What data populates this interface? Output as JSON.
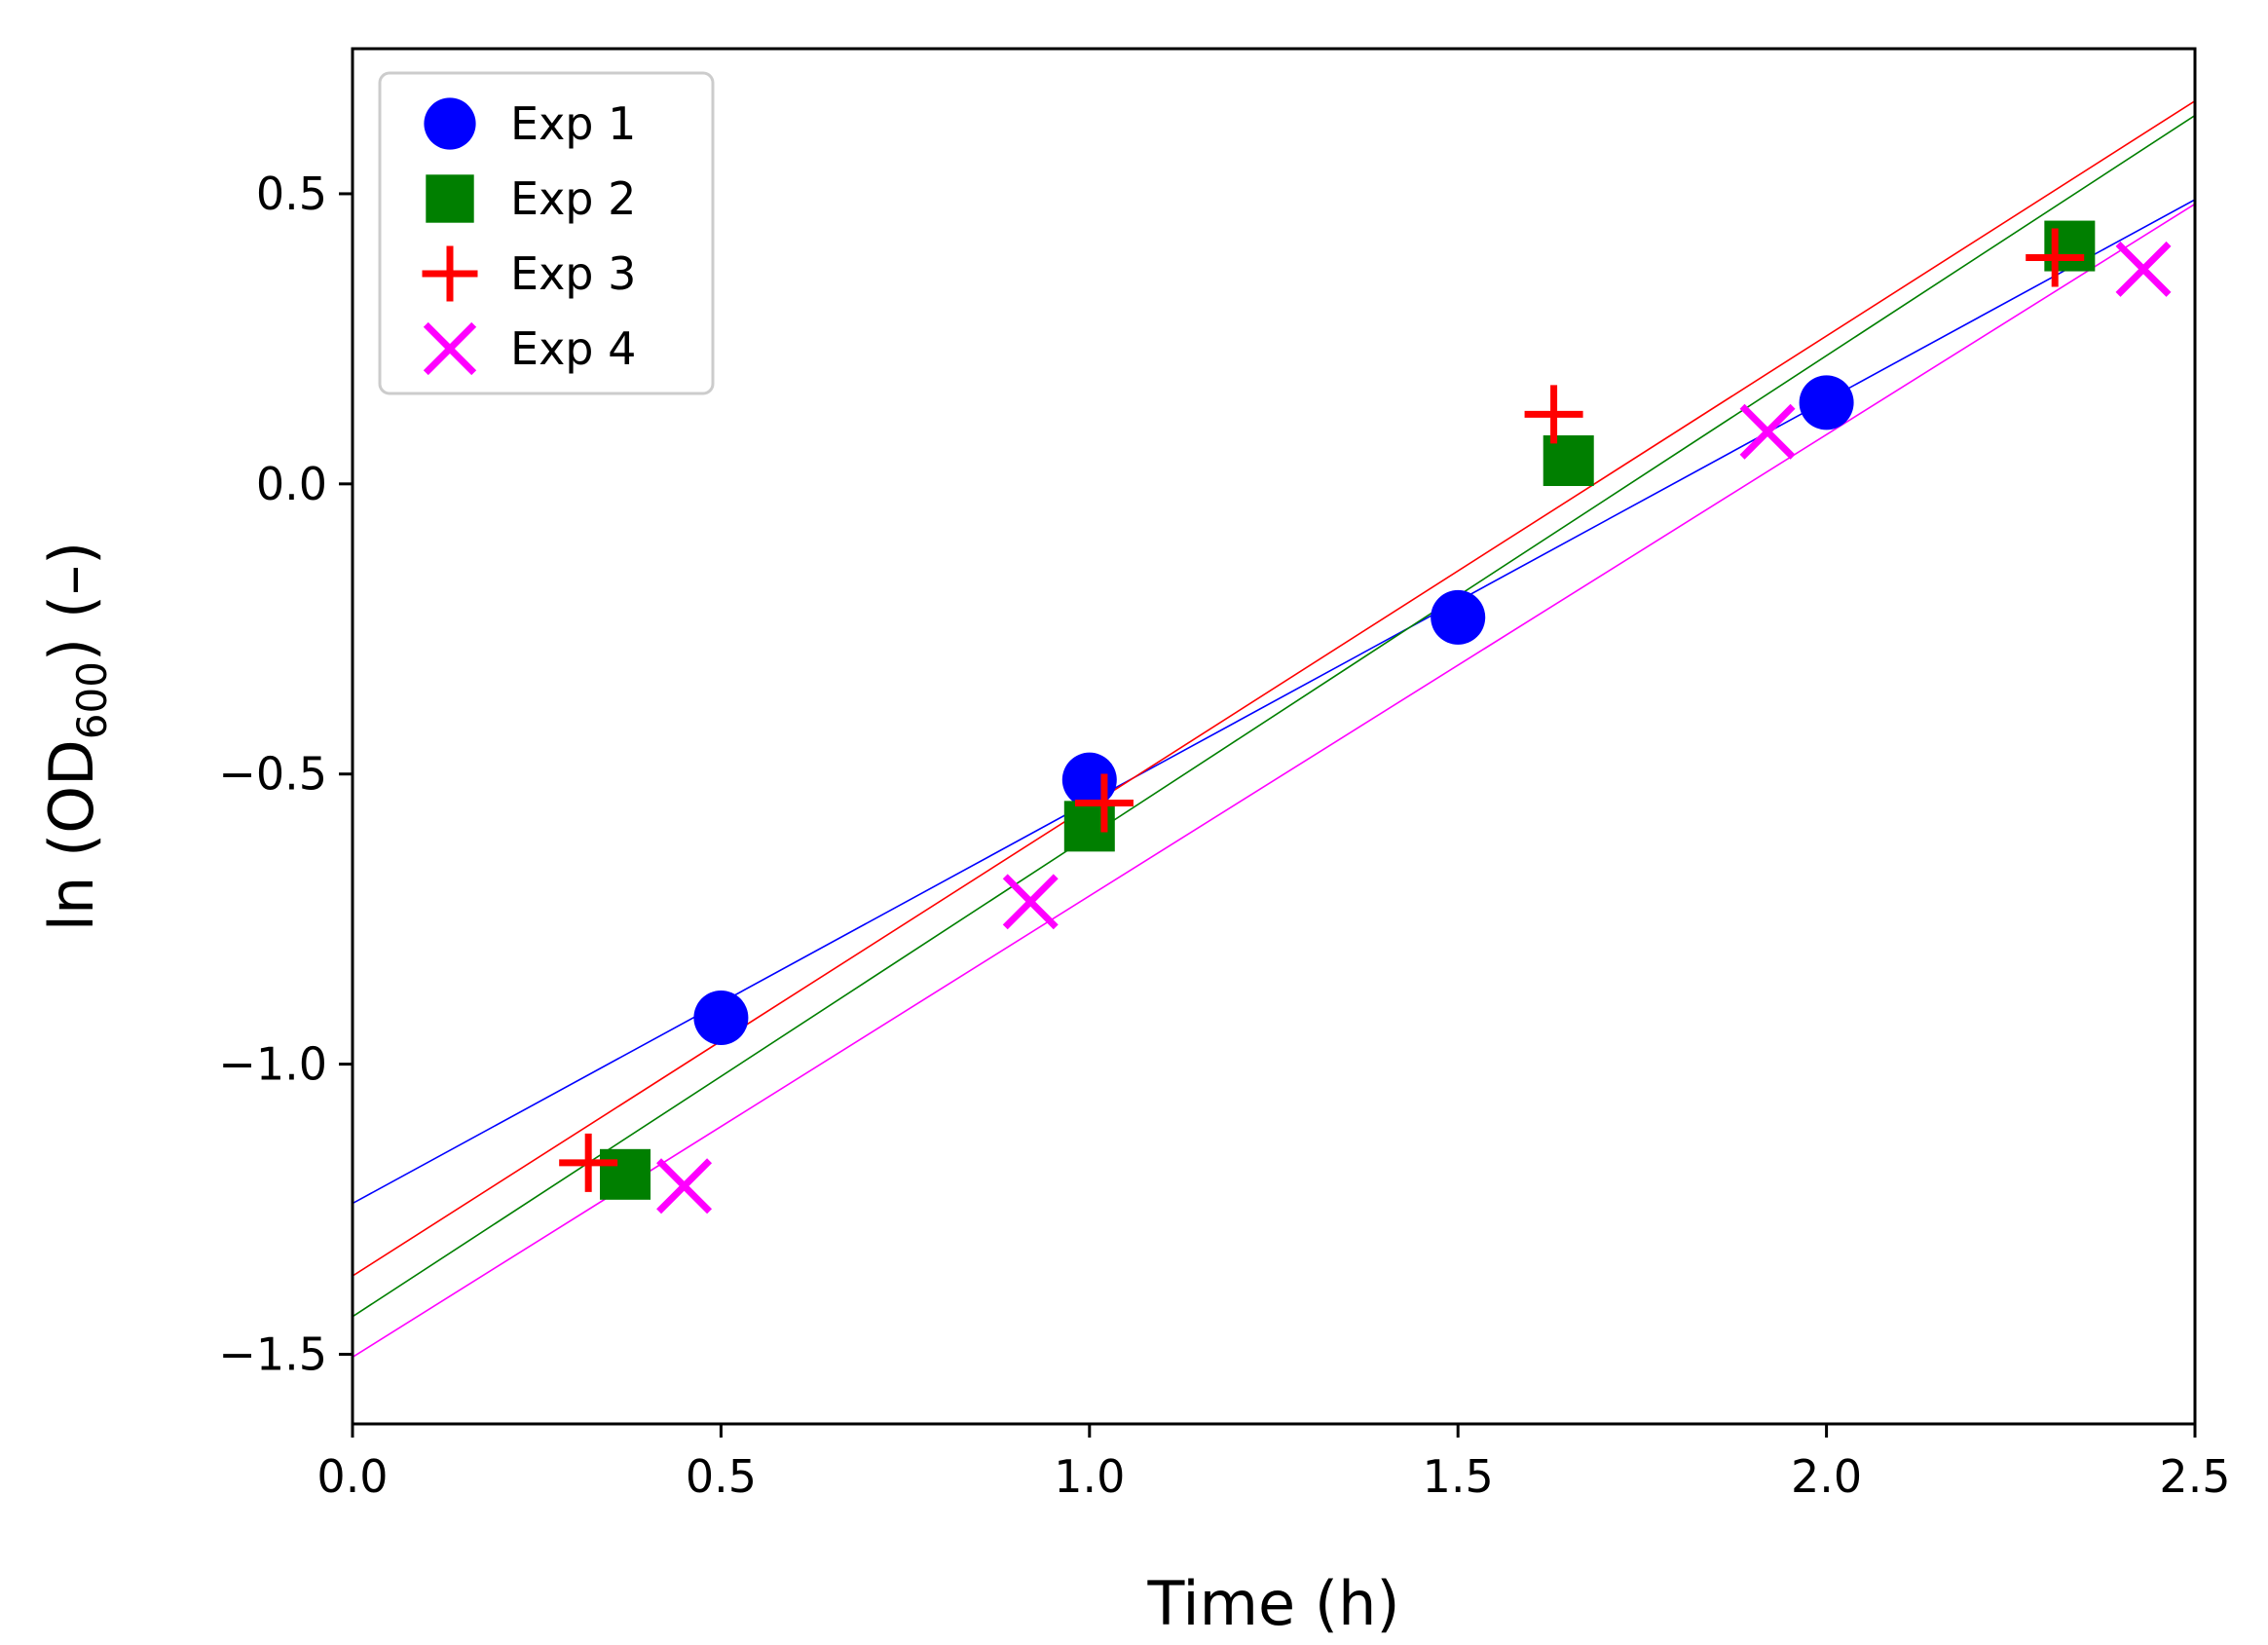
{
  "chart_data": {
    "type": "scatter",
    "title": "",
    "xlabel": "Time (h)",
    "ylabel": {
      "prefix": "ln (OD",
      "subscript": "600",
      "suffix": ") (–)"
    },
    "xlim": [
      0.0,
      2.5
    ],
    "ylim": [
      -1.62,
      0.75
    ],
    "xticks": [
      {
        "value": 0.0,
        "label": "0.0"
      },
      {
        "value": 0.5,
        "label": "0.5"
      },
      {
        "value": 1.0,
        "label": "1.0"
      },
      {
        "value": 1.5,
        "label": "1.5"
      },
      {
        "value": 2.0,
        "label": "2.0"
      },
      {
        "value": 2.5,
        "label": "2.5"
      }
    ],
    "yticks": [
      {
        "value": 0.5,
        "label": "0.5"
      },
      {
        "value": 0.0,
        "label": "0.0"
      },
      {
        "value": -0.5,
        "label": "−0.5"
      },
      {
        "value": -1.0,
        "label": "−1.0"
      },
      {
        "value": -1.5,
        "label": "−1.5"
      }
    ],
    "grid": false,
    "legend_position": "top-left",
    "series": [
      {
        "name": "Exp 1",
        "marker": "circle",
        "color": "#0000ff",
        "x": [
          0.5,
          1.0,
          1.5,
          2.0
        ],
        "y": [
          -0.92,
          -0.51,
          -0.23,
          0.14
        ],
        "fit": {
          "intercept": -1.24,
          "slope": 0.692
        }
      },
      {
        "name": "Exp 2",
        "marker": "square",
        "color": "#007f00",
        "x": [
          0.37,
          1.0,
          1.65,
          2.33
        ],
        "y": [
          -1.19,
          -0.59,
          0.04,
          0.41
        ],
        "fit": {
          "intercept": -1.435,
          "slope": 0.828
        }
      },
      {
        "name": "Exp 3",
        "marker": "plus",
        "color": "#ff0000",
        "x": [
          0.32,
          1.02,
          1.63,
          2.31
        ],
        "y": [
          -1.17,
          -0.55,
          0.12,
          0.39
        ],
        "fit": {
          "intercept": -1.365,
          "slope": 0.81
        }
      },
      {
        "name": "Exp 4",
        "marker": "x",
        "color": "#ff00ff",
        "x": [
          0.45,
          0.92,
          1.92,
          2.43
        ],
        "y": [
          -1.21,
          -0.72,
          0.09,
          0.37
        ],
        "fit": {
          "intercept": -1.505,
          "slope": 0.795
        }
      }
    ]
  }
}
